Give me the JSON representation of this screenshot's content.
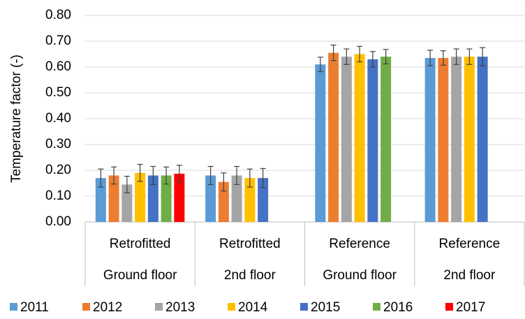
{
  "chart_data": {
    "type": "bar",
    "y_label": "Temperature factor (-)",
    "categories": [
      [
        "Retrofitted",
        "Ground floor"
      ],
      [
        "Retrofitted",
        "2nd floor"
      ],
      [
        "Reference",
        "Ground floor"
      ],
      [
        "Reference",
        "2nd floor"
      ]
    ],
    "series": [
      {
        "name": "2011",
        "color": "#5b9bd5",
        "values": [
          0.17,
          0.18,
          0.61,
          0.635
        ],
        "errors": [
          0.035,
          0.035,
          0.028,
          0.03
        ]
      },
      {
        "name": "2012",
        "color": "#ed7d31",
        "values": [
          0.18,
          0.155,
          0.655,
          0.635
        ],
        "errors": [
          0.033,
          0.035,
          0.03,
          0.028
        ]
      },
      {
        "name": "2013",
        "color": "#a5a5a5",
        "values": [
          0.145,
          0.18,
          0.64,
          0.64
        ],
        "errors": [
          0.032,
          0.035,
          0.03,
          0.03
        ]
      },
      {
        "name": "2014",
        "color": "#ffc000",
        "values": [
          0.19,
          0.17,
          0.65,
          0.64
        ],
        "errors": [
          0.033,
          0.035,
          0.03,
          0.03
        ]
      },
      {
        "name": "2015",
        "color": "#4472c4",
        "values": [
          0.18,
          0.17,
          0.63,
          0.64
        ],
        "errors": [
          0.035,
          0.037,
          0.03,
          0.035
        ]
      },
      {
        "name": "2016",
        "color": "#70ad47",
        "values": [
          0.18,
          null,
          0.64,
          null
        ],
        "errors": [
          0.033,
          null,
          0.028,
          null
        ]
      },
      {
        "name": "2017",
        "color": "#ff0000",
        "values": [
          0.187,
          null,
          null,
          null
        ],
        "errors": [
          0.033,
          null,
          null,
          null
        ]
      }
    ],
    "ylim": [
      0,
      0.8
    ],
    "yticks": [
      {
        "value": 0,
        "label": "0.00"
      },
      {
        "value": 0.1,
        "label": "0.10"
      },
      {
        "value": 0.2,
        "label": "0.20"
      },
      {
        "value": 0.3,
        "label": "0.30"
      },
      {
        "value": 0.4,
        "label": "0.40"
      },
      {
        "value": 0.5,
        "label": "0.50"
      },
      {
        "value": 0.6,
        "label": "0.60"
      },
      {
        "value": 0.7,
        "label": "0.70"
      },
      {
        "value": 0.8,
        "label": "0.80"
      }
    ],
    "grid": true
  }
}
